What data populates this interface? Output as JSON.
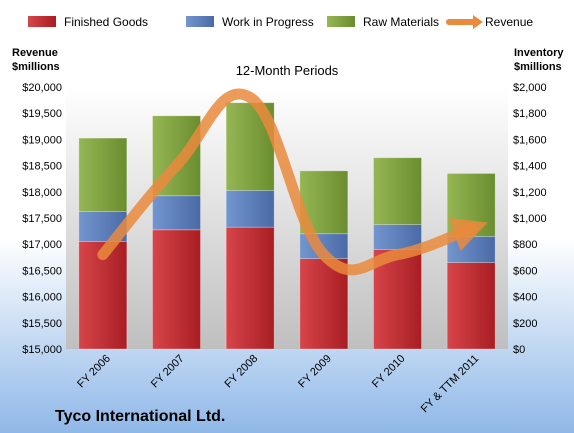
{
  "chart_data": {
    "type": "bar",
    "subtitle": "12-Month Periods",
    "company": "Tyco International Ltd.",
    "categories": [
      "FY 2006",
      "FY 2007",
      "FY 2008",
      "FY 2009",
      "FY 2010",
      "FY & TTM 2011"
    ],
    "left_axis": {
      "title_line1": "Revenue",
      "title_line2": "$millions",
      "range": [
        15000,
        20000
      ],
      "ticks": [
        "$20,000",
        "$19,500",
        "$19,000",
        "$18,500",
        "$18,000",
        "$17,500",
        "$17,000",
        "$16,500",
        "$16,000",
        "$15,500",
        "$15,000"
      ]
    },
    "right_axis": {
      "title_line1": "Inventory",
      "title_line2": "$millions",
      "range": [
        0,
        2000
      ],
      "ticks": [
        "$2,000",
        "$1,800",
        "$1,600",
        "$1,400",
        "$1,200",
        "$1,000",
        "$800",
        "$600",
        "$400",
        "$200",
        "$0"
      ]
    },
    "stacked_series": [
      {
        "name": "Finished Goods",
        "color": "#c0282d",
        "values": [
          820,
          910,
          930,
          690,
          760,
          660
        ]
      },
      {
        "name": "Work in Progress",
        "color": "#5b7fbd",
        "values": [
          230,
          260,
          280,
          190,
          190,
          200
        ]
      },
      {
        "name": "Raw Materials",
        "color": "#7fa33c",
        "values": [
          560,
          610,
          670,
          480,
          510,
          480
        ]
      }
    ],
    "line_series": {
      "name": "Revenue",
      "color": "#ea8a3c",
      "values": [
        16800,
        18500,
        19800,
        16800,
        16800,
        17300
      ]
    },
    "legend_placement": "top"
  }
}
